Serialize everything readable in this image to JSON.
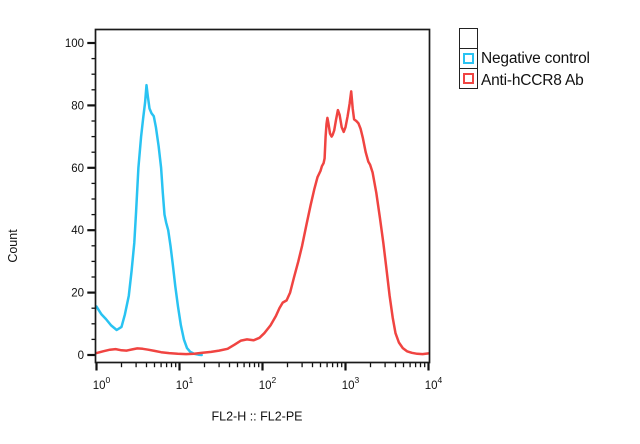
{
  "figure": {
    "background": "#ffffff"
  },
  "legend": {
    "position": "outside-top-right",
    "items": [
      {
        "label": "",
        "color": "none"
      },
      {
        "label": "Negative control",
        "color": "#29C3F2"
      },
      {
        "label": "Anti-hCCR8 Ab",
        "color": "#F04441"
      }
    ]
  },
  "chart_data": {
    "type": "line",
    "subtype": "flow-cytometry-histogram-overlay",
    "title": "",
    "xlabel": "FL2-H :: FL2-PE",
    "ylabel": "Count",
    "x_scale": "log10",
    "xlim": [
      1,
      10000
    ],
    "ylim": [
      0,
      100
    ],
    "grid": false,
    "x_major_ticks": [
      1,
      10,
      100,
      1000,
      10000
    ],
    "x_tick_labels": [
      "10^0",
      "10^1",
      "10^2",
      "10^3",
      "10^4"
    ],
    "x_minor_ticks": "log decades 2-9",
    "y_major_ticks": [
      0,
      20,
      40,
      60,
      80,
      100
    ],
    "y_minor_step": 5,
    "axis_color": "#1a1a1a",
    "series": [
      {
        "name": "Negative control",
        "color": "#29C3F2",
        "peak": {
          "x": 4.0,
          "count": 86.5
        },
        "points": [
          [
            1.0,
            15.5
          ],
          [
            1.15,
            13
          ],
          [
            1.3,
            11.5
          ],
          [
            1.5,
            9.5
          ],
          [
            1.75,
            8
          ],
          [
            2.0,
            9
          ],
          [
            2.2,
            13
          ],
          [
            2.45,
            19
          ],
          [
            2.65,
            27
          ],
          [
            2.85,
            36
          ],
          [
            3.0,
            46
          ],
          [
            3.2,
            60
          ],
          [
            3.45,
            70
          ],
          [
            3.65,
            76
          ],
          [
            3.85,
            81
          ],
          [
            4.0,
            86.5
          ],
          [
            4.15,
            83
          ],
          [
            4.35,
            79
          ],
          [
            4.6,
            77.5
          ],
          [
            4.9,
            76.5
          ],
          [
            5.2,
            73
          ],
          [
            5.6,
            67
          ],
          [
            6.0,
            60
          ],
          [
            6.3,
            52
          ],
          [
            6.6,
            45
          ],
          [
            6.9,
            42.5
          ],
          [
            7.3,
            40
          ],
          [
            7.8,
            35
          ],
          [
            8.3,
            29
          ],
          [
            8.9,
            22
          ],
          [
            9.6,
            15.5
          ],
          [
            10.4,
            9.5
          ],
          [
            11.3,
            5
          ],
          [
            12.3,
            2.2
          ],
          [
            13.5,
            1
          ],
          [
            15,
            0.4
          ],
          [
            17,
            0.1
          ],
          [
            18.5,
            0
          ]
        ]
      },
      {
        "name": "Anti-hCCR8 Ab",
        "color": "#F04441",
        "peak": {
          "x": 1170,
          "count": 84.5
        },
        "points": [
          [
            1.0,
            0.6
          ],
          [
            1.2,
            1.2
          ],
          [
            1.45,
            1.7
          ],
          [
            1.7,
            1.9
          ],
          [
            2.0,
            1.5
          ],
          [
            2.3,
            1.4
          ],
          [
            2.7,
            1.8
          ],
          [
            3.1,
            2.1
          ],
          [
            3.6,
            2.0
          ],
          [
            4.2,
            1.7
          ],
          [
            5.0,
            1.3
          ],
          [
            6.0,
            0.9
          ],
          [
            7.5,
            0.6
          ],
          [
            9.5,
            0.4
          ],
          [
            12,
            0.3
          ],
          [
            15,
            0.4
          ],
          [
            19,
            0.7
          ],
          [
            24,
            1.0
          ],
          [
            30,
            1.4
          ],
          [
            38,
            2.0
          ],
          [
            46,
            3.3
          ],
          [
            55,
            4.6
          ],
          [
            65,
            5.0
          ],
          [
            78,
            4.7
          ],
          [
            92,
            5.5
          ],
          [
            105,
            7.0
          ],
          [
            125,
            9.5
          ],
          [
            145,
            12.5
          ],
          [
            160,
            15
          ],
          [
            175,
            16.8
          ],
          [
            195,
            17.5
          ],
          [
            215,
            20
          ],
          [
            240,
            25
          ],
          [
            270,
            30
          ],
          [
            300,
            35
          ],
          [
            340,
            42
          ],
          [
            380,
            48
          ],
          [
            420,
            53
          ],
          [
            460,
            57
          ],
          [
            500,
            59
          ],
          [
            520,
            60.5
          ],
          [
            545,
            61.5
          ],
          [
            560,
            63
          ],
          [
            575,
            70
          ],
          [
            590,
            74
          ],
          [
            605,
            76
          ],
          [
            620,
            74.5
          ],
          [
            650,
            71
          ],
          [
            680,
            70
          ],
          [
            700,
            70.5
          ],
          [
            730,
            72
          ],
          [
            770,
            75.5
          ],
          [
            810,
            78.5
          ],
          [
            850,
            77
          ],
          [
            900,
            73
          ],
          [
            950,
            71.5
          ],
          [
            1000,
            73
          ],
          [
            1060,
            76.5
          ],
          [
            1120,
            80.5
          ],
          [
            1170,
            84.5
          ],
          [
            1220,
            79
          ],
          [
            1270,
            75.5
          ],
          [
            1350,
            75
          ],
          [
            1430,
            74.3
          ],
          [
            1520,
            72.5
          ],
          [
            1620,
            69.5
          ],
          [
            1750,
            65
          ],
          [
            1880,
            62
          ],
          [
            1980,
            61
          ],
          [
            2120,
            58.5
          ],
          [
            2350,
            52
          ],
          [
            2600,
            44
          ],
          [
            2850,
            36
          ],
          [
            3100,
            28
          ],
          [
            3400,
            19
          ],
          [
            3700,
            12
          ],
          [
            4000,
            7
          ],
          [
            4400,
            4
          ],
          [
            4900,
            2.2
          ],
          [
            5500,
            1.2
          ],
          [
            6300,
            0.7
          ],
          [
            7300,
            0.4
          ],
          [
            8500,
            0.3
          ],
          [
            10000,
            0.5
          ]
        ]
      }
    ]
  }
}
